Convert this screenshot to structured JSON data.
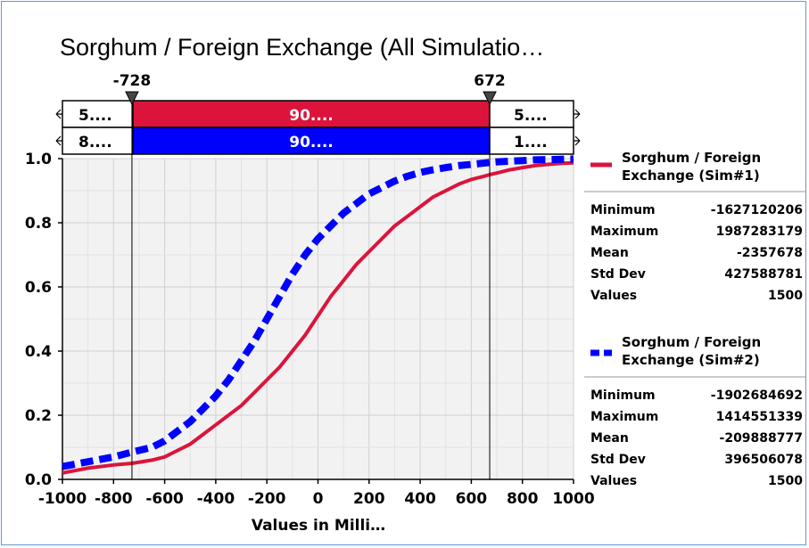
{
  "chart_data": {
    "type": "line",
    "title": "Sorghum / Foreign Exchange (All Simulatio…",
    "xlabel": "Values in Milli…",
    "ylabel": "",
    "xlim": [
      -1000,
      1000
    ],
    "ylim": [
      0,
      1.0
    ],
    "x_ticks": [
      "-1000",
      "-800",
      "-600",
      "-400",
      "-200",
      "0",
      "200",
      "400",
      "600",
      "800",
      "1000"
    ],
    "y_ticks": [
      "0.0",
      "0.2",
      "0.4",
      "0.6",
      "0.8",
      "1.0"
    ],
    "grid": true,
    "markers": {
      "left": "-728",
      "right": "672",
      "left_value": -728,
      "right_value": 672
    },
    "bands": [
      {
        "left": "5....",
        "middle": "90....",
        "right": "5....",
        "color": "#dc143c"
      },
      {
        "left": "8....",
        "middle": "90....",
        "right": "1....",
        "color": "#0000ff"
      }
    ],
    "series": [
      {
        "name": "Sorghum / Foreign Exchange (Sim#1)",
        "color": "#dc143c",
        "style": "solid",
        "x": [
          -1000,
          -900,
          -800,
          -728,
          -650,
          -600,
          -550,
          -500,
          -450,
          -400,
          -350,
          -300,
          -250,
          -200,
          -150,
          -100,
          -50,
          0,
          50,
          100,
          150,
          200,
          250,
          300,
          350,
          400,
          450,
          500,
          550,
          600,
          650,
          672,
          700,
          750,
          800,
          850,
          900,
          950,
          1000
        ],
        "values": [
          0.02,
          0.035,
          0.045,
          0.05,
          0.06,
          0.07,
          0.09,
          0.11,
          0.14,
          0.17,
          0.2,
          0.23,
          0.27,
          0.31,
          0.35,
          0.4,
          0.45,
          0.51,
          0.57,
          0.62,
          0.67,
          0.71,
          0.75,
          0.79,
          0.82,
          0.85,
          0.88,
          0.9,
          0.92,
          0.935,
          0.945,
          0.95,
          0.955,
          0.965,
          0.972,
          0.978,
          0.982,
          0.985,
          0.987
        ]
      },
      {
        "name": "Sorghum / Foreign Exchange (Sim#2)",
        "color": "#0000ff",
        "style": "dashed",
        "x": [
          -1000,
          -900,
          -800,
          -728,
          -650,
          -600,
          -550,
          -500,
          -450,
          -400,
          -350,
          -300,
          -250,
          -200,
          -150,
          -100,
          -50,
          0,
          50,
          100,
          150,
          200,
          250,
          300,
          350,
          400,
          450,
          500,
          550,
          600,
          650,
          672,
          700,
          750,
          800,
          850,
          900,
          950,
          1000
        ],
        "values": [
          0.04,
          0.055,
          0.07,
          0.085,
          0.1,
          0.12,
          0.15,
          0.18,
          0.22,
          0.26,
          0.31,
          0.37,
          0.43,
          0.5,
          0.57,
          0.64,
          0.7,
          0.75,
          0.79,
          0.83,
          0.86,
          0.89,
          0.91,
          0.93,
          0.945,
          0.957,
          0.965,
          0.972,
          0.978,
          0.982,
          0.986,
          0.988,
          0.99,
          0.992,
          0.994,
          0.996,
          0.997,
          0.998,
          0.999
        ]
      }
    ]
  },
  "legend": [
    {
      "label_line1": "Sorghum / Foreign",
      "label_line2": "Exchange (Sim#1)",
      "color": "#dc143c",
      "stats": [
        {
          "label": "Minimum",
          "value": "-1627120206"
        },
        {
          "label": "Maximum",
          "value": "1987283179"
        },
        {
          "label": "Mean",
          "value": "-2357678"
        },
        {
          "label": "Std Dev",
          "value": "427588781"
        },
        {
          "label": "Values",
          "value": "1500"
        }
      ]
    },
    {
      "label_line1": "Sorghum / Foreign",
      "label_line2": "Exchange (Sim#2)",
      "color": "#0000ff",
      "stats": [
        {
          "label": "Minimum",
          "value": "-1902684692"
        },
        {
          "label": "Maximum",
          "value": "1414551339"
        },
        {
          "label": "Mean",
          "value": "-209888777"
        },
        {
          "label": "Std Dev",
          "value": "396506078"
        },
        {
          "label": "Values",
          "value": "1500"
        }
      ]
    }
  ]
}
